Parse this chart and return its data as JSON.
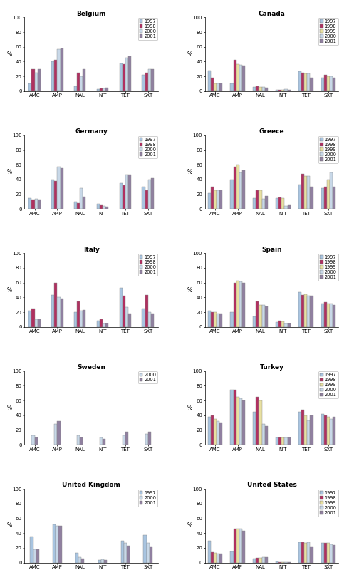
{
  "countries": [
    "Belgium",
    "Canada",
    "Germany",
    "Greece",
    "Italy",
    "Spain",
    "Sweden",
    "Turkey",
    "United Kingdom",
    "United States"
  ],
  "categories": [
    "AMC",
    "AMP",
    "NAL",
    "NIT",
    "TET",
    "SXT"
  ],
  "years": [
    "1997",
    "1998",
    "1999",
    "2000",
    "2001"
  ],
  "colors": {
    "1997": "#a8c4e0",
    "1998": "#b03060",
    "1999": "#e8e0a0",
    "2000": "#c8d8e8",
    "2001": "#9080a0"
  },
  "data": {
    "Belgium": {
      "1997": [
        10,
        40,
        7,
        3,
        38,
        22
      ],
      "1998": [
        30,
        42,
        25,
        4,
        37,
        25
      ],
      "1999": null,
      "2000": [
        25,
        57,
        20,
        4,
        45,
        30
      ],
      "2001": [
        30,
        58,
        30,
        5,
        47,
        30
      ]
    },
    "Canada": {
      "1997": [
        28,
        10,
        6,
        2,
        27,
        18
      ],
      "1998": [
        18,
        42,
        7,
        2,
        25,
        22
      ],
      "1999": [
        10,
        37,
        6,
        2,
        24,
        20
      ],
      "2000": [
        10,
        36,
        6,
        3,
        24,
        20
      ],
      "2001": [
        10,
        35,
        5,
        2,
        18,
        18
      ]
    },
    "Germany": {
      "1997": [
        15,
        40,
        10,
        7,
        35,
        30
      ],
      "1998": [
        13,
        38,
        8,
        5,
        32,
        25
      ],
      "1999": null,
      "2000": [
        14,
        57,
        28,
        4,
        47,
        40
      ],
      "2001": [
        13,
        55,
        17,
        3,
        47,
        42
      ]
    },
    "Greece": {
      "1997": [
        22,
        40,
        15,
        15,
        33,
        28
      ],
      "1998": [
        30,
        57,
        25,
        16,
        48,
        30
      ],
      "1999": [
        25,
        60,
        25,
        15,
        45,
        40
      ],
      "2000": [
        25,
        50,
        14,
        4,
        45,
        50
      ],
      "2001": [
        25,
        52,
        18,
        5,
        30,
        30
      ]
    },
    "Italy": {
      "1997": [
        22,
        43,
        20,
        8,
        53,
        25
      ],
      "1998": [
        25,
        60,
        35,
        10,
        42,
        43
      ],
      "1999": null,
      "2000": [
        10,
        40,
        22,
        5,
        27,
        20
      ],
      "2001": [
        10,
        38,
        23,
        5,
        18,
        18
      ]
    },
    "Spain": {
      "1997": [
        22,
        20,
        14,
        6,
        47,
        32
      ],
      "1998": [
        20,
        60,
        35,
        8,
        43,
        34
      ],
      "1999": [
        20,
        63,
        30,
        7,
        44,
        32
      ],
      "2000": [
        18,
        62,
        30,
        5,
        42,
        32
      ],
      "2001": [
        18,
        60,
        28,
        5,
        42,
        30
      ]
    },
    "Sweden": {
      "1997": null,
      "1998": null,
      "1999": null,
      "2000": [
        13,
        28,
        13,
        10,
        13,
        15
      ],
      "2001": [
        10,
        32,
        10,
        8,
        18,
        18
      ]
    },
    "Turkey": {
      "1997": [
        38,
        75,
        45,
        10,
        45,
        42
      ],
      "1998": [
        40,
        75,
        65,
        10,
        48,
        40
      ],
      "1999": [
        35,
        65,
        60,
        10,
        40,
        38
      ],
      "2000": [
        32,
        63,
        28,
        10,
        33,
        35
      ],
      "2001": [
        30,
        60,
        25,
        10,
        40,
        38
      ]
    },
    "United Kingdom": {
      "1997": [
        35,
        52,
        13,
        3,
        30,
        37
      ],
      "1998": null,
      "1999": null,
      "2000": [
        18,
        50,
        7,
        4,
        27,
        27
      ],
      "2001": [
        18,
        50,
        5,
        3,
        23,
        22
      ]
    },
    "United States": {
      "1997": [
        30,
        15,
        5,
        2,
        28,
        27
      ],
      "1998": [
        14,
        46,
        6,
        1,
        28,
        27
      ],
      "1999": [
        13,
        46,
        6,
        1,
        27,
        27
      ],
      "2000": [
        12,
        46,
        7,
        1,
        28,
        25
      ],
      "2001": [
        12,
        43,
        7,
        1,
        22,
        24
      ]
    }
  },
  "legend_years_per_country": {
    "Belgium": [
      "1997",
      "1998",
      "2000",
      "2001"
    ],
    "Canada": [
      "1997",
      "1998",
      "1999",
      "2000",
      "2001"
    ],
    "Germany": [
      "1997",
      "1998",
      "2000",
      "2001"
    ],
    "Greece": [
      "1997",
      "1998",
      "1999",
      "2000",
      "2001"
    ],
    "Italy": [
      "1997",
      "1998",
      "2000",
      "2001"
    ],
    "Spain": [
      "1997",
      "1998",
      "1999",
      "2000",
      "2001"
    ],
    "Sweden": [
      "2000",
      "2001"
    ],
    "Turkey": [
      "1997",
      "1998",
      "1999",
      "2000",
      "2001"
    ],
    "United Kingdom": [
      "1997",
      "2000",
      "2001"
    ],
    "United States": [
      "1997",
      "1998",
      "1999",
      "2000",
      "2001"
    ]
  }
}
